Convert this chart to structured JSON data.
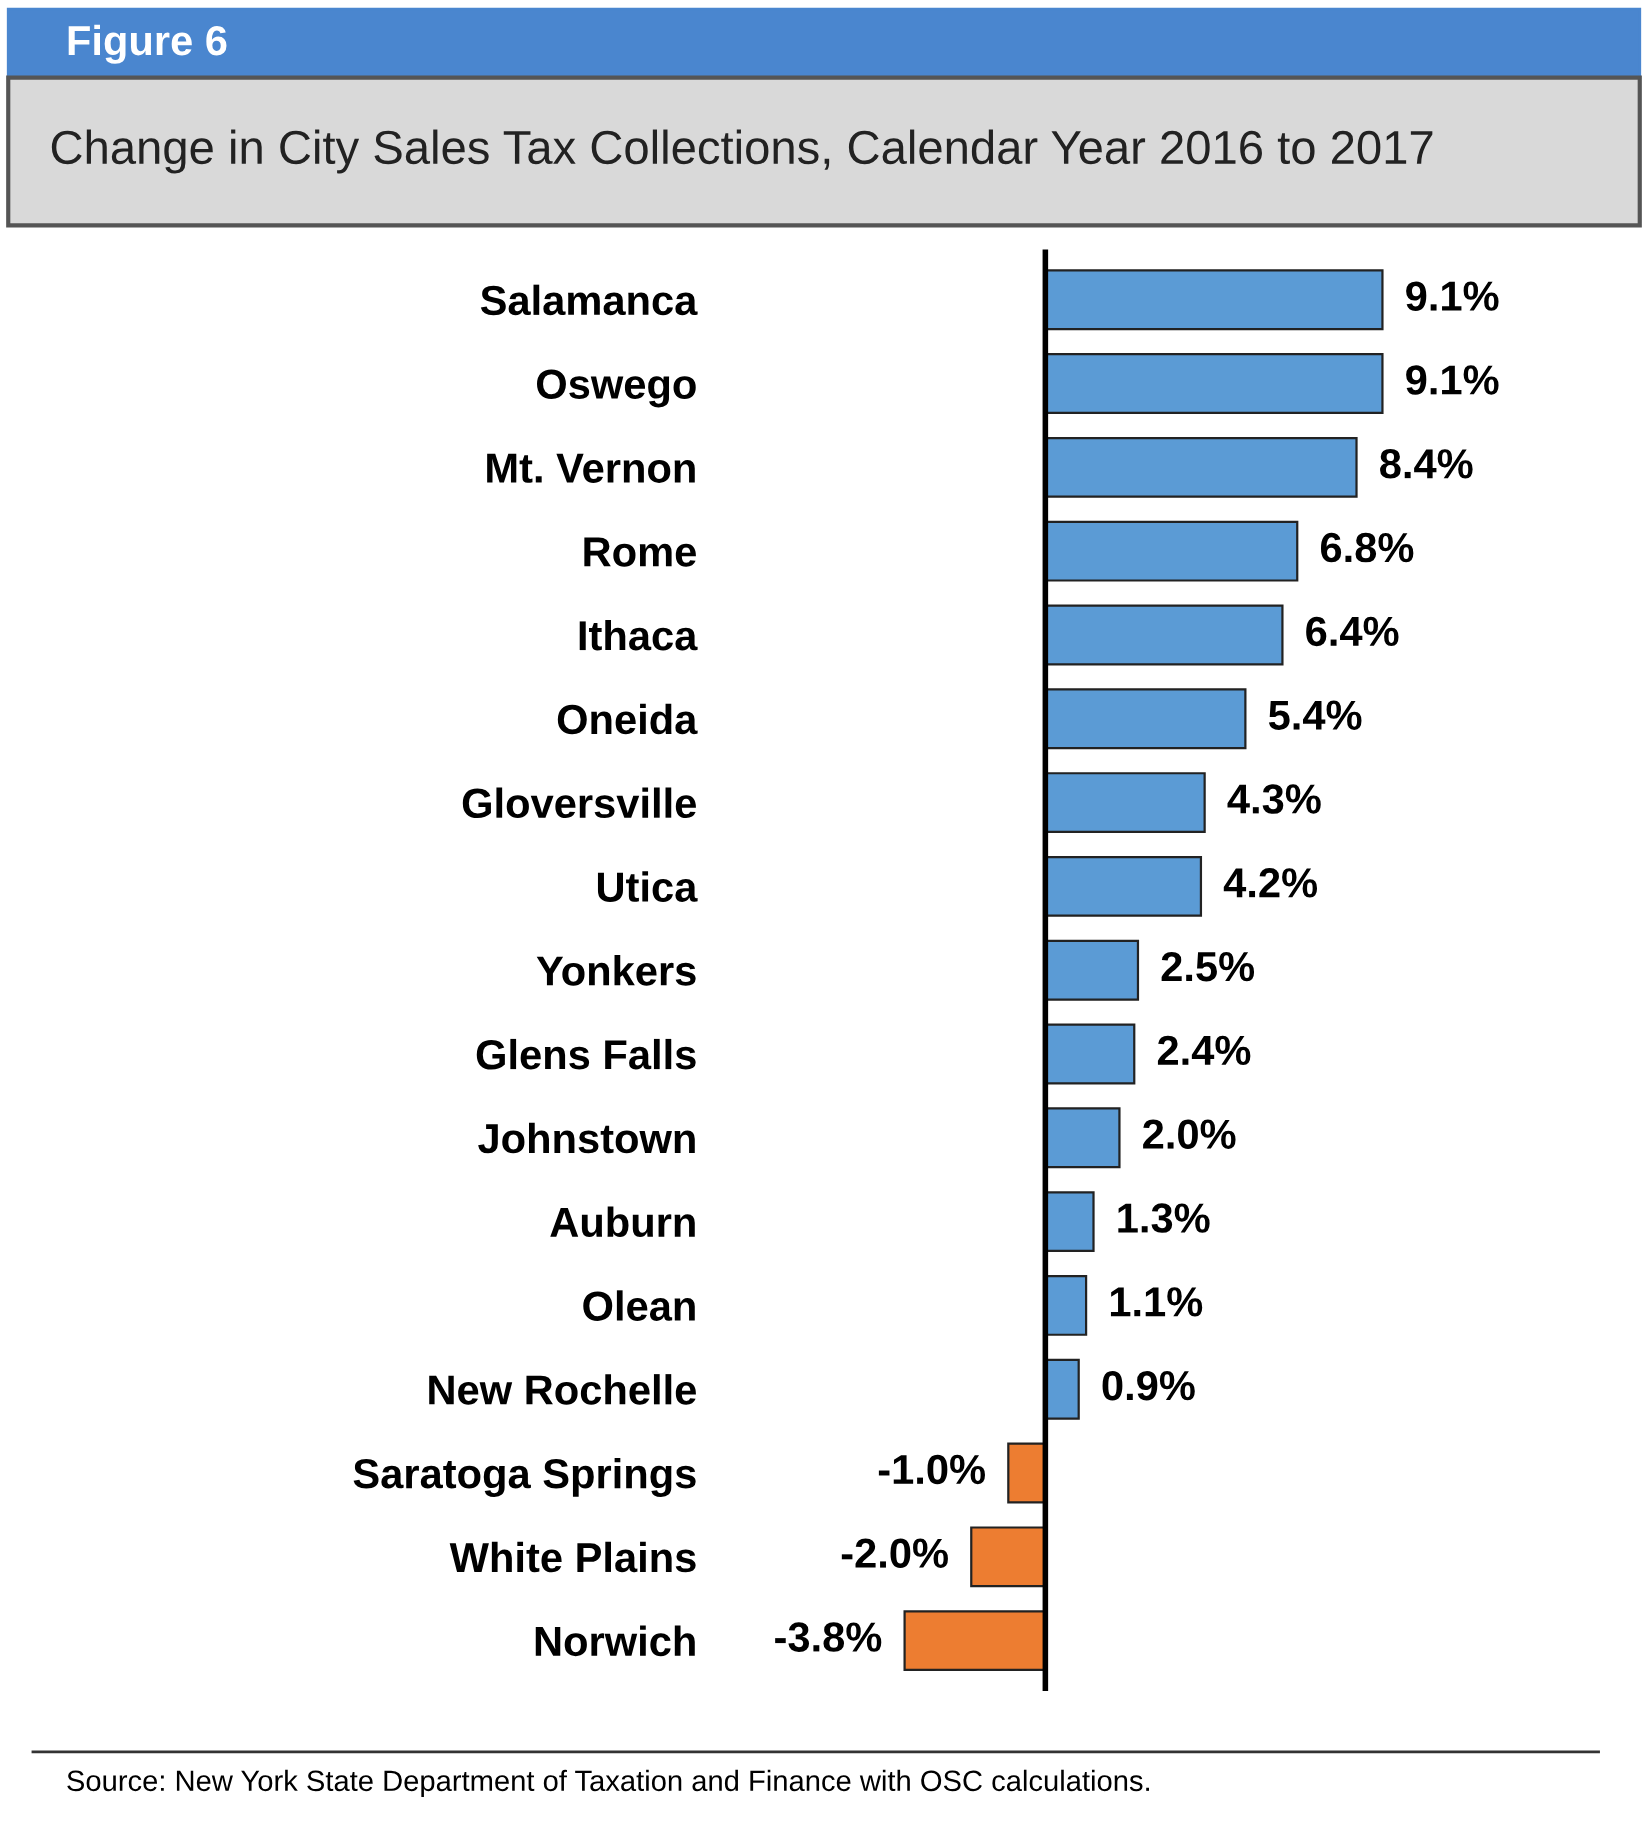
{
  "chart_data": {
    "type": "bar",
    "orientation": "horizontal",
    "title": "Figure 6",
    "subtitle": "Change in City Sales Tax Collections, Calendar Year 2016 to 2017",
    "categories": [
      "Salamanca",
      "Oswego",
      "Mt. Vernon",
      "Rome",
      "Ithaca",
      "Oneida",
      "Gloversville",
      "Utica",
      "Yonkers",
      "Glens Falls",
      "Johnstown",
      "Auburn",
      "Olean",
      "New Rochelle",
      "Saratoga Springs",
      "White Plains",
      "Norwich"
    ],
    "values": [
      9.1,
      9.1,
      8.4,
      6.8,
      6.4,
      5.4,
      4.3,
      4.2,
      2.5,
      2.4,
      2.0,
      1.3,
      1.1,
      0.9,
      -1.0,
      -2.0,
      -3.8
    ],
    "colors": [
      "#5b9bd5",
      "#5b9bd5",
      "#5b9bd5",
      "#5b9bd5",
      "#5b9bd5",
      "#5b9bd5",
      "#5b9bd5",
      "#5b9bd5",
      "#5b9bd5",
      "#5b9bd5",
      "#5b9bd5",
      "#5b9bd5",
      "#5b9bd5",
      "#5b9bd5",
      "#ed7d31",
      "#ed7d31",
      "#ed7d31"
    ],
    "value_labels": [
      "9.1%",
      "9.1%",
      "8.4%",
      "6.8%",
      "6.4%",
      "5.4%",
      "4.3%",
      "4.2%",
      "2.5%",
      "2.4%",
      "2.0%",
      "1.3%",
      "1.1%",
      "0.9%",
      "-1.0%",
      "-2.0%",
      "-3.8%"
    ],
    "annotations": [
      "Source: New York State Department of Taxation and Finance with OSC calculations."
    ]
  }
}
